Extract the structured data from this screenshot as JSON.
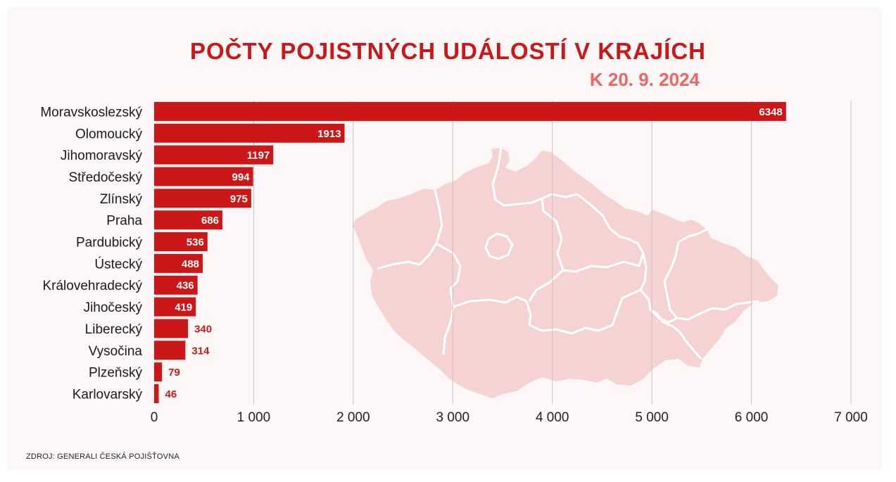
{
  "chart_data": {
    "type": "bar",
    "orientation": "horizontal",
    "title": "POČTY POJISTNÝCH UDÁLOSTÍ V KRAJÍCH",
    "subtitle": "K 20. 9. 2024",
    "categories": [
      "Moravskoslezský",
      "Olomoucký",
      "Jihomoravský",
      "Středočeský",
      "Zlínský",
      "Praha",
      "Pardubický",
      "Ústecký",
      "Královehradecký",
      "Jihočeský",
      "Liberecký",
      "Vysočina",
      "Plzeňský",
      "Karlovarský"
    ],
    "values": [
      6348,
      1913,
      1197,
      994,
      975,
      686,
      536,
      488,
      436,
      419,
      340,
      314,
      79,
      46
    ],
    "value_labels": [
      "6348",
      "1913",
      "1197",
      "994",
      "975",
      "686",
      "536",
      "488",
      "436",
      "419",
      "340",
      "314",
      "79",
      "46"
    ],
    "xlim": [
      0,
      7000
    ],
    "x_ticks": [
      0,
      1000,
      2000,
      3000,
      4000,
      5000,
      6000,
      7000
    ],
    "x_tick_labels": [
      "0",
      "1 000",
      "2 000",
      "3 000",
      "4 000",
      "5 000",
      "6 000",
      "7 000"
    ],
    "grid": "vertical",
    "legend": "none",
    "colors": {
      "bar": "#cc1719",
      "title": "#cc1719",
      "subtitle": "#f26464",
      "map": "#f5d3d2",
      "grid": "#c9c3c2"
    }
  },
  "source_text": "ZDROJ: GENERALI ČESKÁ POJIŠŤOVNA",
  "decoration": {
    "map_icon": "czech-regions-map-icon"
  }
}
